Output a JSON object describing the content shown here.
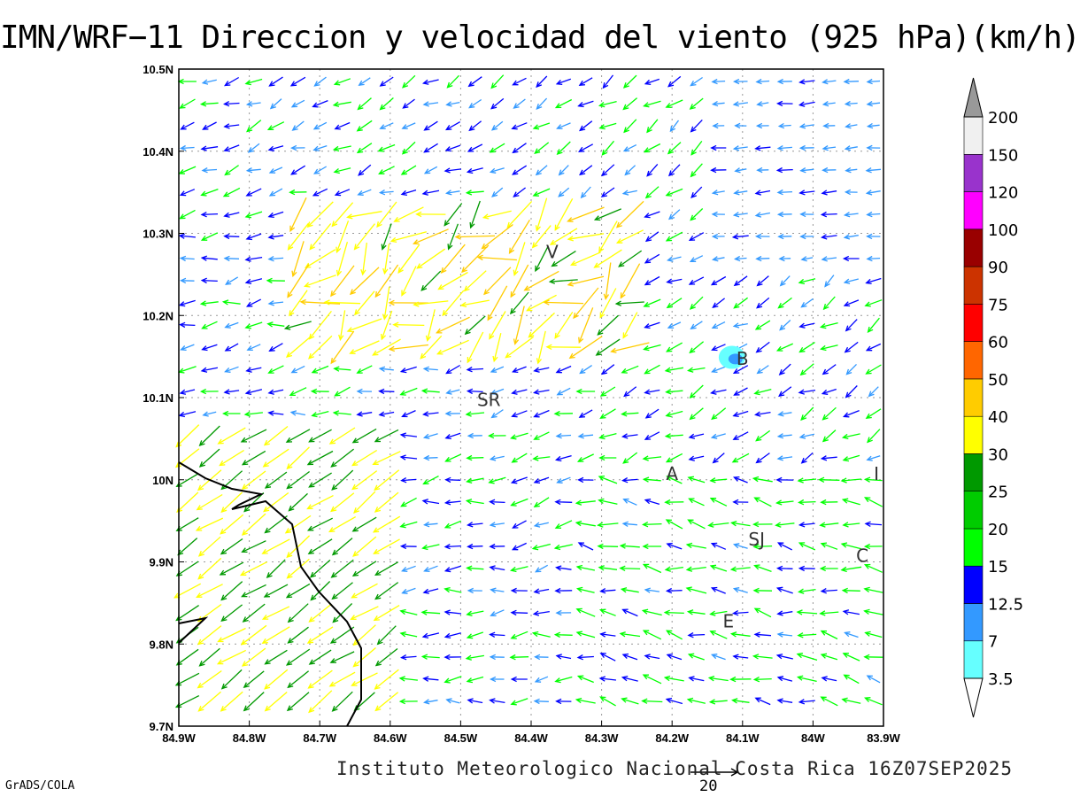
{
  "title": "IMN/WRF−11 Direccion y velocidad del viento (925 hPa)(km/h)",
  "footer": "Instituto Meteorologico Nacional Costa Rica 16Z07SEP2025",
  "software": "GrADS/COLA",
  "reference_vector_label": "20",
  "chart_data": {
    "type": "wind-vector-map",
    "variable": "Direccion y velocidad del viento",
    "level": "925 hPa",
    "units": "km/h",
    "valid_time": "16Z07SEP2025",
    "lon_range": [
      -84.9,
      -83.9
    ],
    "lat_range": [
      9.7,
      10.5
    ],
    "lon_ticks": [
      "84.9W",
      "84.8W",
      "84.7W",
      "84.6W",
      "84.5W",
      "84.4W",
      "84.3W",
      "84.2W",
      "84.1W",
      "84W",
      "83.9W"
    ],
    "lat_ticks": [
      "9.7N",
      "9.8N",
      "9.9N",
      "10N",
      "10.1N",
      "10.2N",
      "10.3N",
      "10.4N",
      "10.5N"
    ],
    "grid": true,
    "reference_vector": 20,
    "dominant_flow": "from east / northeast",
    "color_scale": {
      "thresholds": [
        "3.5",
        "7",
        "12.5",
        "15",
        "20",
        "25",
        "30",
        "40",
        "50",
        "60",
        "75",
        "90",
        "100",
        "120",
        "150",
        "200"
      ],
      "colors": [
        "#66ffff",
        "#3399ff",
        "#0000ff",
        "#00ff00",
        "#00cc00",
        "#009900",
        "#ffff00",
        "#ffcc00",
        "#ff6600",
        "#ff0000",
        "#cc3300",
        "#990000",
        "#ff00ff",
        "#9933cc",
        "#f0f0f0",
        "#999999"
      ]
    },
    "places": [
      {
        "code": "V",
        "lon": -84.37,
        "lat": 10.27
      },
      {
        "code": "SR",
        "lon": -84.46,
        "lat": 10.09
      },
      {
        "code": "B",
        "lon": -84.1,
        "lat": 10.14
      },
      {
        "code": "A",
        "lon": -84.2,
        "lat": 10.0
      },
      {
        "code": "I",
        "lon": -83.91,
        "lat": 10.0
      },
      {
        "code": "SJ",
        "lon": -84.08,
        "lat": 9.92
      },
      {
        "code": "C",
        "lon": -83.93,
        "lat": 9.9
      },
      {
        "code": "E",
        "lon": -84.12,
        "lat": 9.82
      }
    ]
  }
}
